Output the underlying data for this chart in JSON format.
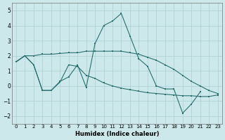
{
  "xlabel": "Humidex (Indice chaleur)",
  "xlim": [
    -0.5,
    23.5
  ],
  "ylim": [
    -2.5,
    5.5
  ],
  "yticks": [
    -2,
    -1,
    0,
    1,
    2,
    3,
    4,
    5
  ],
  "xticks": [
    0,
    1,
    2,
    3,
    4,
    5,
    6,
    7,
    8,
    9,
    10,
    11,
    12,
    13,
    14,
    15,
    16,
    17,
    18,
    19,
    20,
    21,
    22,
    23
  ],
  "bg_color": "#cce8eb",
  "line_color": "#2a7070",
  "grid_color": "#aacfd4",
  "line1_x": [
    0,
    1,
    2,
    3,
    4,
    5,
    6,
    7,
    8,
    9,
    10,
    11,
    12,
    13,
    14,
    15,
    16,
    17,
    18,
    19,
    20,
    21,
    22,
    23
  ],
  "line1_y": [
    1.6,
    2.0,
    2.0,
    2.1,
    2.1,
    2.15,
    2.2,
    2.2,
    2.3,
    2.3,
    2.3,
    2.3,
    2.3,
    2.2,
    2.1,
    1.9,
    1.7,
    1.4,
    1.1,
    0.7,
    0.3,
    0.0,
    -0.3,
    -0.5
  ],
  "line2_x": [
    0,
    1,
    2,
    3,
    4,
    5,
    6,
    7,
    8,
    9,
    10,
    11,
    12,
    13,
    14,
    15,
    16,
    17,
    18,
    19,
    20,
    21,
    22,
    23
  ],
  "line2_y": [
    1.6,
    2.0,
    1.4,
    -0.3,
    -0.3,
    0.3,
    0.6,
    1.4,
    -0.1,
    2.8,
    4.0,
    4.3,
    4.8,
    3.3,
    1.8,
    1.3,
    0.0,
    -0.2,
    -0.2,
    -1.8,
    -1.2,
    -0.4,
    null,
    null
  ],
  "line3_x": [
    0,
    1,
    2,
    3,
    4,
    5,
    6,
    7,
    8,
    9,
    10,
    11,
    12,
    13,
    14,
    15,
    16,
    17,
    18,
    19,
    20,
    21,
    22,
    23
  ],
  "line3_y": [
    1.6,
    2.0,
    1.4,
    -0.3,
    -0.3,
    0.25,
    1.4,
    1.3,
    0.7,
    0.5,
    0.2,
    0.0,
    -0.15,
    -0.25,
    -0.35,
    -0.45,
    -0.5,
    -0.55,
    -0.6,
    -0.65,
    -0.65,
    -0.7,
    -0.7,
    -0.6
  ]
}
